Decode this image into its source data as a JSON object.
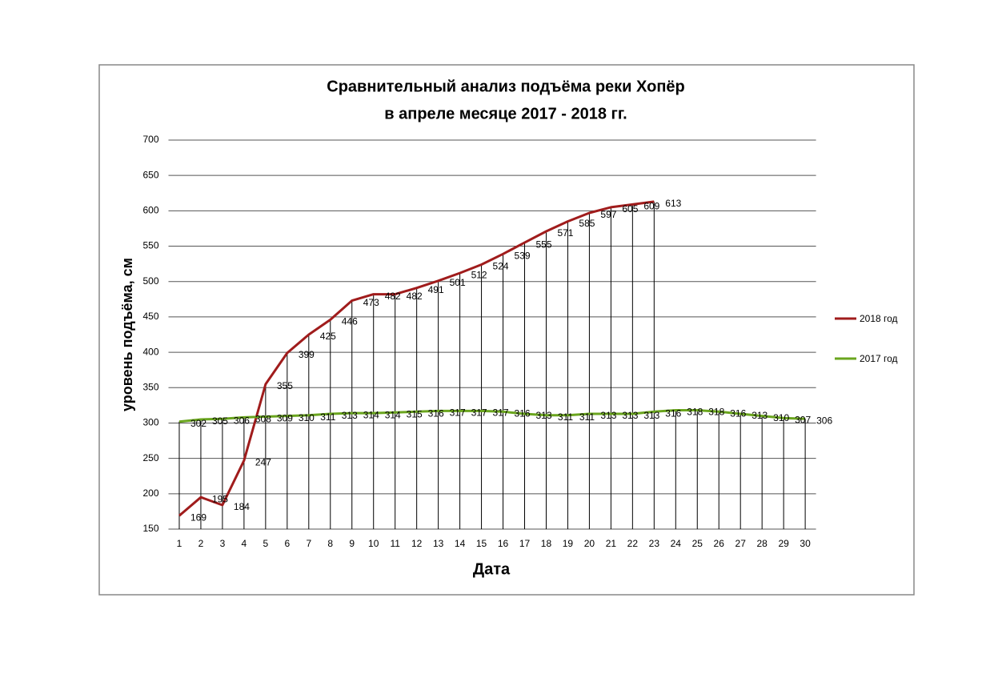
{
  "chart_data": {
    "type": "line",
    "title": "Сравнительный анализ подъёма реки Хопёр",
    "subtitle": "в апреле месяце 2017 - 2018 гг.",
    "x_label": "Дата",
    "y_label": "уровень подъёма, см",
    "categories": [
      1,
      2,
      3,
      4,
      5,
      6,
      7,
      8,
      9,
      10,
      11,
      12,
      13,
      14,
      15,
      16,
      17,
      18,
      19,
      20,
      21,
      22,
      23,
      24,
      25,
      26,
      27,
      28,
      29,
      30
    ],
    "series": [
      {
        "name": "2018 год",
        "color": "#a01c1c",
        "values": [
          169,
          195,
          184,
          247,
          355,
          399,
          425,
          446,
          473,
          482,
          482,
          491,
          501,
          512,
          524,
          539,
          555,
          571,
          585,
          597,
          605,
          609,
          613,
          null,
          null,
          null,
          null,
          null,
          null,
          null
        ]
      },
      {
        "name": "2017 год",
        "color": "#6aa51e",
        "values": [
          302,
          305,
          306,
          308,
          309,
          310,
          311,
          313,
          314,
          314,
          315,
          316,
          317,
          317,
          317,
          316,
          313,
          311,
          311,
          313,
          313,
          313,
          316,
          318,
          318,
          316,
          313,
          310,
          307,
          306
        ]
      }
    ],
    "ylim": [
      150,
      700
    ],
    "yticks": [
      150,
      200,
      250,
      300,
      350,
      400,
      450,
      500,
      550,
      600,
      650,
      700
    ],
    "grid": true,
    "legend": "right",
    "drop_lines": true
  }
}
